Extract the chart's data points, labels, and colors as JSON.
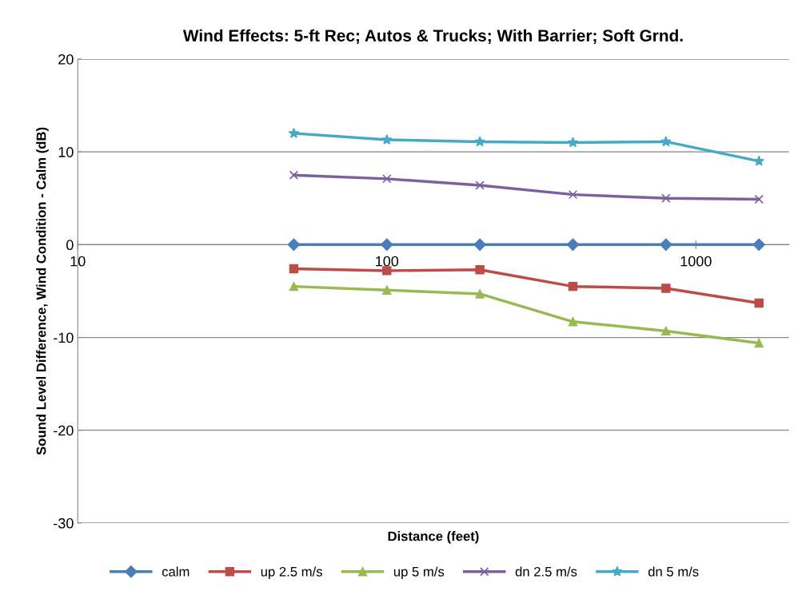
{
  "chart_data": {
    "type": "line",
    "title": "Wind Effects: 5-ft Rec; Autos & Trucks; With Barrier; Soft Grnd.",
    "xlabel": "Distance (feet)",
    "ylabel": "Sound Level Difference, Wind Condition - Calm (dB)",
    "log": "x",
    "x": [
      50,
      100,
      200,
      400,
      800,
      1600
    ],
    "xlim": [
      10,
      2000
    ],
    "xticks": [
      10,
      100,
      1000
    ],
    "ylim": [
      -30,
      20
    ],
    "yticks": [
      -30,
      -20,
      -10,
      0,
      10,
      20
    ],
    "grid": "y",
    "legend": "bottom",
    "series": [
      {
        "name": "calm",
        "color": "#4a7ebb",
        "marker": "diamond",
        "values": [
          0,
          0,
          0,
          0,
          0,
          0
        ]
      },
      {
        "name": "up 2.5 m/s",
        "color": "#be4b48",
        "marker": "square",
        "values": [
          -2.6,
          -2.8,
          -2.7,
          -4.5,
          -4.7,
          -6.3
        ]
      },
      {
        "name": "up 5 m/s",
        "color": "#98b954",
        "marker": "triangle",
        "values": [
          -4.5,
          -4.9,
          -5.3,
          -8.3,
          -9.3,
          -10.6
        ]
      },
      {
        "name": "dn 2.5 m/s",
        "color": "#7d60a0",
        "marker": "cross",
        "values": [
          7.5,
          7.1,
          6.4,
          5.4,
          5.0,
          4.9
        ]
      },
      {
        "name": "dn 5 m/s",
        "color": "#46aac5",
        "marker": "star",
        "values": [
          12.0,
          11.3,
          11.1,
          11.0,
          11.1,
          9.0
        ]
      }
    ]
  }
}
